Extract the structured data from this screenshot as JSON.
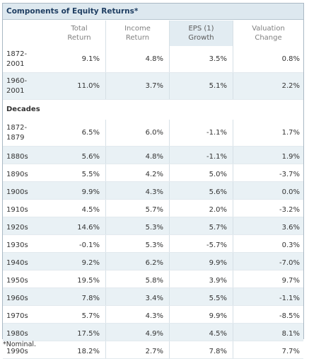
{
  "title": "Components of Equity Returns*",
  "headers": [
    [
      "",
      ""
    ],
    [
      "Total",
      "Return"
    ],
    [
      "Income",
      "Return"
    ],
    [
      "EPS (1)",
      "Growth"
    ],
    [
      "Valuation",
      "Change"
    ]
  ],
  "summary_rows": [
    {
      "label": [
        "1872-",
        "2001"
      ],
      "values": [
        "9.1%",
        "4.8%",
        "3.5%",
        "0.8%"
      ]
    },
    {
      "label": [
        "1960-",
        "2001"
      ],
      "values": [
        "11.0%",
        "3.7%",
        "5.1%",
        "2.2%"
      ]
    }
  ],
  "section_label": "Decades",
  "decade_rows": [
    {
      "label": [
        "1872-",
        "1879"
      ],
      "values": [
        "6.5%",
        "6.0%",
        "-1.1%",
        "1.7%"
      ]
    },
    {
      "label": [
        "1880s"
      ],
      "values": [
        "5.6%",
        "4.8%",
        "-1.1%",
        "1.9%"
      ]
    },
    {
      "label": [
        "1890s"
      ],
      "values": [
        "5.5%",
        "4.2%",
        "5.0%",
        "-3.7%"
      ]
    },
    {
      "label": [
        "1900s"
      ],
      "values": [
        "9.9%",
        "4.3%",
        "5.6%",
        "0.0%"
      ]
    },
    {
      "label": [
        "1910s"
      ],
      "values": [
        "4.5%",
        "5.7%",
        "2.0%",
        "-3.2%"
      ]
    },
    {
      "label": [
        "1920s"
      ],
      "values": [
        "14.6%",
        "5.3%",
        "5.7%",
        "3.6%"
      ]
    },
    {
      "label": [
        "1930s"
      ],
      "values": [
        "-0.1%",
        "5.3%",
        "-5.7%",
        "0.3%"
      ]
    },
    {
      "label": [
        "1940s"
      ],
      "values": [
        "9.2%",
        "6.2%",
        "9.9%",
        "-7.0%"
      ]
    },
    {
      "label": [
        "1950s"
      ],
      "values": [
        "19.5%",
        "5.8%",
        "3.9%",
        "9.7%"
      ]
    },
    {
      "label": [
        "1960s"
      ],
      "values": [
        "7.8%",
        "3.4%",
        "5.5%",
        "-1.1%"
      ]
    },
    {
      "label": [
        "1970s"
      ],
      "values": [
        "5.7%",
        "4.3%",
        "9.9%",
        "-8.5%"
      ]
    },
    {
      "label": [
        "1980s"
      ],
      "values": [
        "17.5%",
        "4.9%",
        "4.5%",
        "8.1%"
      ]
    },
    {
      "label": [
        "1990s"
      ],
      "values": [
        "18.2%",
        "2.7%",
        "7.8%",
        "7.7%"
      ]
    }
  ],
  "footnote": "*Nominal."
}
